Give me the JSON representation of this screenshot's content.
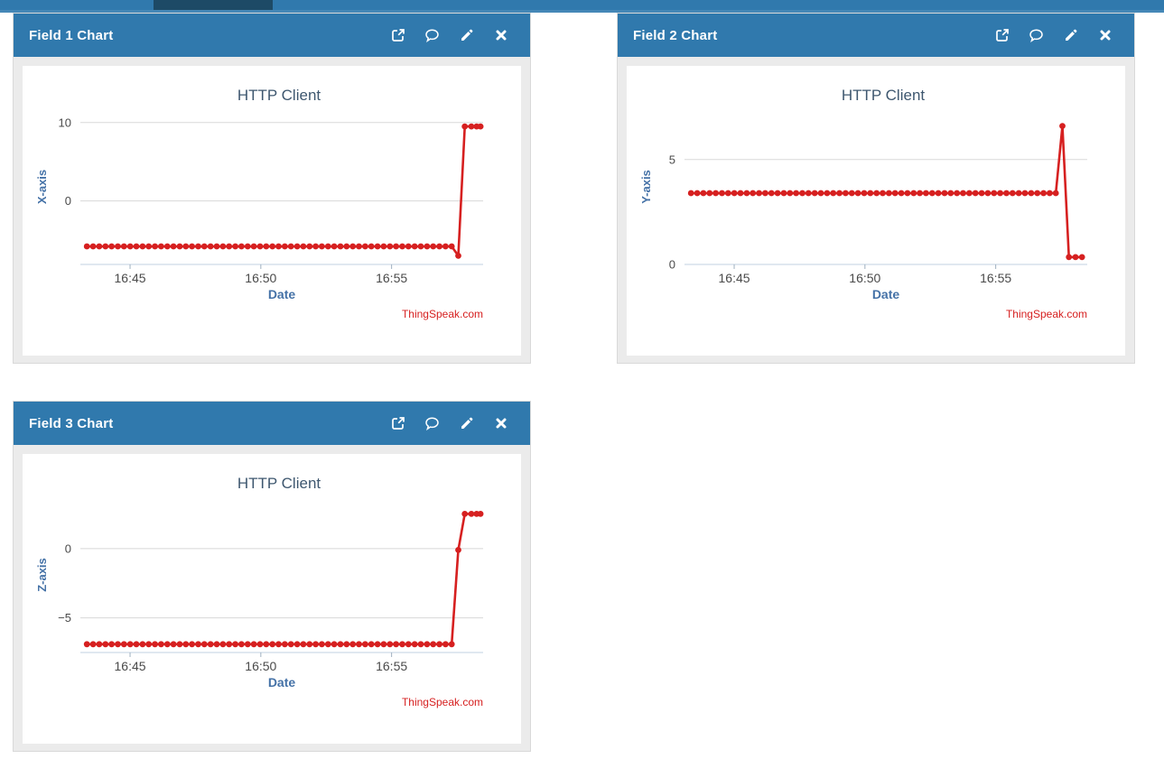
{
  "navbar": {
    "description": "bottom sliver of top navigation bar with active tab highlighted",
    "colors": {
      "bar": "#3079ad",
      "active_tab": "#1d4a66",
      "underline": "#4588b7"
    }
  },
  "panels": [
    {
      "title": "Field 1 Chart"
    },
    {
      "title": "Field 2 Chart"
    },
    {
      "title": "Field 3 Chart"
    }
  ],
  "panel_actions": [
    {
      "name": "open-external",
      "icon": "external-link-icon"
    },
    {
      "name": "comments",
      "icon": "comment-icon"
    },
    {
      "name": "edit",
      "icon": "pencil-icon"
    },
    {
      "name": "close",
      "icon": "close-icon"
    }
  ],
  "chart_style": {
    "series_color": "#d62020",
    "title_color": "#3e576f",
    "axis_title_color": "#4572a7",
    "tick_label_color": "#4a4a4a",
    "grid_color": "#d8d8d8",
    "axis_line_color": "#c0d0e0",
    "tick_mark_color": "#9fb0c0",
    "credit_color": "#d62020",
    "header_bg": "#3079ad",
    "panel_body_bg": "#ebebeb",
    "panel_border": "#d9d9d9"
  },
  "chart_data": [
    {
      "type": "line",
      "title": "HTTP Client",
      "xlabel": "Date",
      "ylabel": "X-axis",
      "credit": "ThingSpeak.com",
      "x_unit": "minutes after 16:00",
      "x_range": [
        43.1,
        58.5
      ],
      "x_ticks": [
        {
          "t": 45,
          "label": "16:45"
        },
        {
          "t": 50,
          "label": "16:50"
        },
        {
          "t": 55,
          "label": "16:55"
        }
      ],
      "y_range": [
        -8.1,
        11.7
      ],
      "y_ticks": [
        {
          "v": 0,
          "label": "0"
        },
        {
          "v": 10,
          "label": "10"
        }
      ],
      "grid": true,
      "legend": false,
      "series": [
        {
          "name": "field1",
          "baseline": {
            "value": -5.8,
            "t_start": 43.35,
            "t_end": 57.3,
            "points": 60
          },
          "extra_points": [
            [
              57.55,
              -7.0
            ],
            [
              57.8,
              9.5
            ],
            [
              58.05,
              9.5
            ],
            [
              58.25,
              9.5
            ],
            [
              58.4,
              9.5
            ]
          ]
        }
      ]
    },
    {
      "type": "line",
      "title": "HTTP Client",
      "xlabel": "Date",
      "ylabel": "Y-axis",
      "credit": "ThingSpeak.com",
      "x_unit": "minutes after 16:00",
      "x_range": [
        43.1,
        58.5
      ],
      "x_ticks": [
        {
          "t": 45,
          "label": "16:45"
        },
        {
          "t": 50,
          "label": "16:50"
        },
        {
          "t": 55,
          "label": "16:55"
        }
      ],
      "y_range": [
        0,
        7.4
      ],
      "y_ticks": [
        {
          "v": 0,
          "label": "0"
        },
        {
          "v": 5,
          "label": "5"
        }
      ],
      "grid": true,
      "legend": false,
      "series": [
        {
          "name": "field2",
          "baseline": {
            "value": 3.4,
            "t_start": 43.35,
            "t_end": 57.3,
            "points": 60
          },
          "extra_points": [
            [
              57.55,
              6.6
            ],
            [
              57.8,
              0.35
            ],
            [
              58.05,
              0.35
            ],
            [
              58.3,
              0.35
            ]
          ]
        }
      ]
    },
    {
      "type": "line",
      "title": "HTTP Client",
      "xlabel": "Date",
      "ylabel": "Z-axis",
      "credit": "ThingSpeak.com",
      "x_unit": "minutes after 16:00",
      "x_range": [
        43.1,
        58.5
      ],
      "x_ticks": [
        {
          "t": 45,
          "label": "16:45"
        },
        {
          "t": 50,
          "label": "16:50"
        },
        {
          "t": 55,
          "label": "16:55"
        }
      ],
      "y_range": [
        -7.5,
        3.7
      ],
      "y_ticks": [
        {
          "v": -5,
          "label": "−5"
        },
        {
          "v": 0,
          "label": "0"
        }
      ],
      "grid": true,
      "legend": false,
      "series": [
        {
          "name": "field3",
          "baseline": {
            "value": -6.9,
            "t_start": 43.35,
            "t_end": 57.3,
            "points": 60
          },
          "extra_points": [
            [
              57.55,
              -0.1
            ],
            [
              57.8,
              2.5
            ],
            [
              58.05,
              2.5
            ],
            [
              58.25,
              2.5
            ],
            [
              58.4,
              2.5
            ]
          ]
        }
      ]
    }
  ]
}
